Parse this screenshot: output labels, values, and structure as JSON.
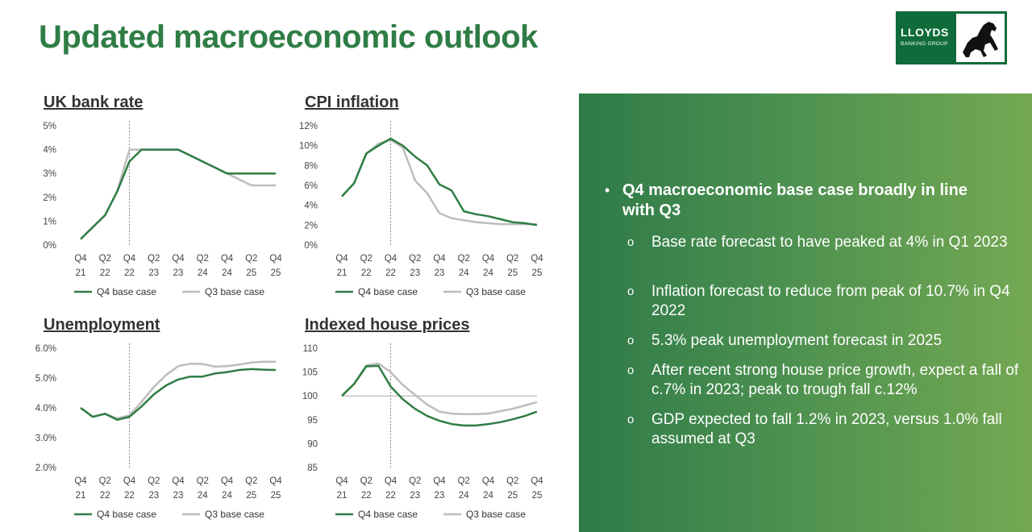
{
  "page": {
    "title": "Updated macroeconomic outlook",
    "logo": {
      "line1": "LLOYDS",
      "line2": "BANKING GROUP"
    }
  },
  "colors": {
    "q4": "#2f7d45",
    "q3": "#bdbdbd",
    "title": "#2f7d45"
  },
  "chart_data": [
    {
      "type": "line",
      "title": "UK bank rate",
      "categories": [
        "Q4 21",
        "Q1 22",
        "Q2 22",
        "Q3 22",
        "Q4 22",
        "Q1 23",
        "Q2 23",
        "Q3 23",
        "Q4 23",
        "Q1 24",
        "Q2 24",
        "Q3 24",
        "Q4 24",
        "Q1 25",
        "Q2 25",
        "Q3 25",
        "Q4 25"
      ],
      "x_tick_labels": [
        [
          "Q4",
          "21"
        ],
        [
          "Q2",
          "22"
        ],
        [
          "Q4",
          "22"
        ],
        [
          "Q2",
          "23"
        ],
        [
          "Q4",
          "23"
        ],
        [
          "Q2",
          "24"
        ],
        [
          "Q4",
          "24"
        ],
        [
          "Q2",
          "25"
        ],
        [
          "Q4",
          "25"
        ]
      ],
      "y_ticks": [
        "0%",
        "1%",
        "2%",
        "3%",
        "4%",
        "5%"
      ],
      "ylim": [
        0,
        5
      ],
      "series": [
        {
          "name": "Q4 base case",
          "values": [
            0.25,
            0.75,
            1.25,
            2.25,
            3.5,
            4.0,
            4.0,
            4.0,
            4.0,
            3.75,
            3.5,
            3.25,
            3.0,
            3.0,
            3.0,
            3.0,
            3.0
          ]
        },
        {
          "name": "Q3 base case",
          "values": [
            0.25,
            0.75,
            1.25,
            2.25,
            4.0,
            4.0,
            4.0,
            4.0,
            4.0,
            3.75,
            3.5,
            3.25,
            3.0,
            2.75,
            2.5,
            2.5,
            2.5
          ]
        }
      ]
    },
    {
      "type": "line",
      "title": "CPI inflation",
      "categories": [
        "Q4 21",
        "Q1 22",
        "Q2 22",
        "Q3 22",
        "Q4 22",
        "Q1 23",
        "Q2 23",
        "Q3 23",
        "Q4 23",
        "Q1 24",
        "Q2 24",
        "Q3 24",
        "Q4 24",
        "Q1 25",
        "Q2 25",
        "Q3 25",
        "Q4 25"
      ],
      "x_tick_labels": [
        [
          "Q4",
          "21"
        ],
        [
          "Q2",
          "22"
        ],
        [
          "Q4",
          "22"
        ],
        [
          "Q2",
          "23"
        ],
        [
          "Q4",
          "23"
        ],
        [
          "Q2",
          "24"
        ],
        [
          "Q4",
          "24"
        ],
        [
          "Q2",
          "25"
        ],
        [
          "Q4",
          "25"
        ]
      ],
      "y_ticks": [
        "0%",
        "2%",
        "4%",
        "6%",
        "8%",
        "10%",
        "12%"
      ],
      "ylim": [
        0,
        12
      ],
      "series": [
        {
          "name": "Q4 base case",
          "values": [
            4.9,
            6.2,
            9.2,
            10.0,
            10.7,
            10.0,
            8.9,
            8.0,
            6.1,
            5.5,
            3.4,
            3.1,
            2.9,
            2.6,
            2.3,
            2.2,
            2.0
          ]
        },
        {
          "name": "Q3 base case",
          "values": [
            4.9,
            6.2,
            9.2,
            10.2,
            10.6,
            9.8,
            6.5,
            5.2,
            3.2,
            2.7,
            2.5,
            2.3,
            2.2,
            2.1,
            2.1,
            2.1,
            2.1
          ]
        }
      ]
    },
    {
      "type": "line",
      "title": "Unemployment",
      "categories": [
        "Q4 21",
        "Q1 22",
        "Q2 22",
        "Q3 22",
        "Q4 22",
        "Q1 23",
        "Q2 23",
        "Q3 23",
        "Q4 23",
        "Q1 24",
        "Q2 24",
        "Q3 24",
        "Q4 24",
        "Q1 25",
        "Q2 25",
        "Q3 25",
        "Q4 25"
      ],
      "x_tick_labels": [
        [
          "Q4",
          "21"
        ],
        [
          "Q2",
          "22"
        ],
        [
          "Q4",
          "22"
        ],
        [
          "Q2",
          "23"
        ],
        [
          "Q4",
          "23"
        ],
        [
          "Q2",
          "24"
        ],
        [
          "Q4",
          "24"
        ],
        [
          "Q2",
          "25"
        ],
        [
          "Q4",
          "25"
        ]
      ],
      "y_ticks": [
        "2.0%",
        "3.0%",
        "4.0%",
        "5.0%",
        "6.0%"
      ],
      "ylim": [
        2,
        6
      ],
      "series": [
        {
          "name": "Q4 base case",
          "values": [
            4.0,
            3.7,
            3.8,
            3.6,
            3.7,
            4.05,
            4.45,
            4.75,
            4.95,
            5.05,
            5.05,
            5.15,
            5.2,
            5.27,
            5.3,
            5.28,
            5.27
          ]
        },
        {
          "name": "Q3 base case",
          "values": [
            4.0,
            3.7,
            3.8,
            3.65,
            3.75,
            4.2,
            4.7,
            5.1,
            5.4,
            5.48,
            5.47,
            5.38,
            5.4,
            5.45,
            5.52,
            5.55,
            5.55
          ]
        }
      ]
    },
    {
      "type": "line",
      "title": "Indexed house prices",
      "categories": [
        "Q4 21",
        "Q1 22",
        "Q2 22",
        "Q3 22",
        "Q4 22",
        "Q1 23",
        "Q2 23",
        "Q3 23",
        "Q4 23",
        "Q1 24",
        "Q2 24",
        "Q3 24",
        "Q4 24",
        "Q1 25",
        "Q2 25",
        "Q3 25",
        "Q4 25"
      ],
      "x_tick_labels": [
        [
          "Q4",
          "21"
        ],
        [
          "Q2",
          "22"
        ],
        [
          "Q4",
          "22"
        ],
        [
          "Q2",
          "23"
        ],
        [
          "Q4",
          "23"
        ],
        [
          "Q2",
          "24"
        ],
        [
          "Q4",
          "24"
        ],
        [
          "Q2",
          "25"
        ],
        [
          "Q4",
          "25"
        ]
      ],
      "y_ticks": [
        "85",
        "90",
        "95",
        "100",
        "105",
        "110"
      ],
      "ylim": [
        85,
        110
      ],
      "reference_line": 100,
      "series": [
        {
          "name": "Q4 base case",
          "values": [
            100,
            102.5,
            106.2,
            106.3,
            102.0,
            99.3,
            97.3,
            95.8,
            94.8,
            94.1,
            93.8,
            93.8,
            94.1,
            94.5,
            95.1,
            95.8,
            96.7
          ]
        },
        {
          "name": "Q3 base case",
          "values": [
            100,
            102.5,
            106.4,
            106.8,
            105.0,
            102.3,
            100.2,
            98.2,
            96.7,
            96.3,
            96.2,
            96.2,
            96.3,
            96.8,
            97.3,
            98.0,
            98.7
          ]
        }
      ]
    }
  ],
  "panel": {
    "main_bullet": "Q4 macroeconomic base case broadly in line with Q3",
    "sub_bullets": [
      "Base rate forecast to have peaked at 4% in Q1 2023",
      "Inflation forecast to reduce from peak of 10.7% in Q4 2022",
      "5.3% peak unemployment forecast in 2025",
      "After recent strong house price growth, expect a fall of c.7% in 2023; peak to trough fall c.12%",
      "GDP expected to fall 1.2% in 2023, versus 1.0% fall assumed at Q3"
    ]
  }
}
